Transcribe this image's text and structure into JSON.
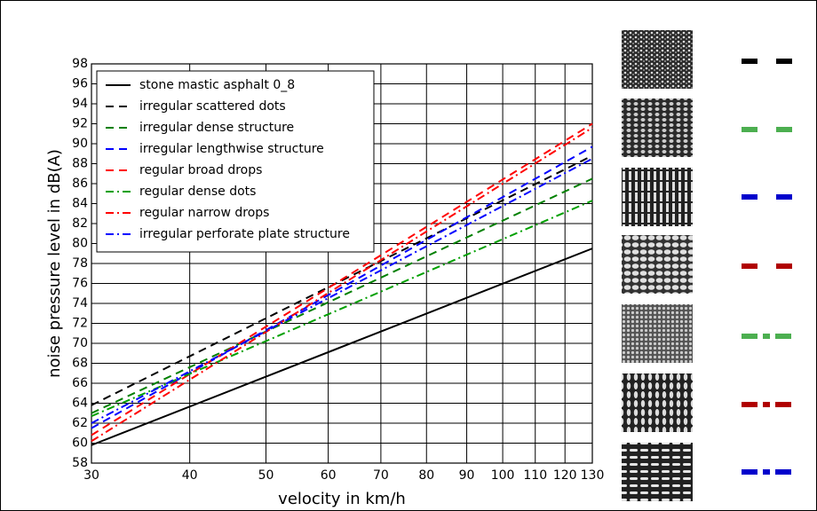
{
  "chart_data": {
    "type": "line",
    "xlabel": "velocity in km/h",
    "ylabel": "noise pressure level in dB(A)",
    "xscale": "log",
    "xlim": [
      30,
      130
    ],
    "xticks": [
      30,
      40,
      50,
      60,
      70,
      80,
      90,
      100,
      110,
      120,
      130
    ],
    "ylim": [
      58,
      98
    ],
    "yticks": [
      58,
      60,
      62,
      64,
      66,
      68,
      70,
      72,
      74,
      76,
      78,
      80,
      82,
      84,
      86,
      88,
      90,
      92,
      94,
      96,
      98
    ],
    "grid": true,
    "legend": "upper left",
    "series": [
      {
        "name": "stone mastic asphalt 0_8",
        "color": "#000000",
        "linestyle": "solid",
        "x": [
          30,
          130
        ],
        "values": [
          59.8,
          79.5
        ]
      },
      {
        "name": "irregular scattered dots",
        "color": "#000000",
        "linestyle": "dashed",
        "x": [
          30,
          130
        ],
        "values": [
          63.8,
          88.8
        ]
      },
      {
        "name": "irregular dense structure",
        "color": "#008000",
        "linestyle": "dashed",
        "x": [
          30,
          130
        ],
        "values": [
          63.0,
          86.5
        ]
      },
      {
        "name": "irregular lengthwise structure",
        "color": "#0000ff",
        "linestyle": "dashed",
        "x": [
          30,
          130
        ],
        "values": [
          61.5,
          89.7
        ]
      },
      {
        "name": "regular broad drops",
        "color": "#ff0000",
        "linestyle": "dashed",
        "x": [
          30,
          130
        ],
        "values": [
          60.8,
          92.0
        ]
      },
      {
        "name": "regular dense dots",
        "color": "#00a000",
        "linestyle": "dashdot",
        "x": [
          30,
          130
        ],
        "values": [
          62.7,
          84.3
        ]
      },
      {
        "name": "regular narrow drops",
        "color": "#ff0000",
        "linestyle": "dashdot",
        "x": [
          30,
          130
        ],
        "values": [
          60.2,
          91.6
        ]
      },
      {
        "name": "irregular perforate plate structure",
        "color": "#0000ff",
        "linestyle": "dashdot",
        "x": [
          30,
          130
        ],
        "values": [
          62.0,
          88.5
        ]
      }
    ]
  }
}
